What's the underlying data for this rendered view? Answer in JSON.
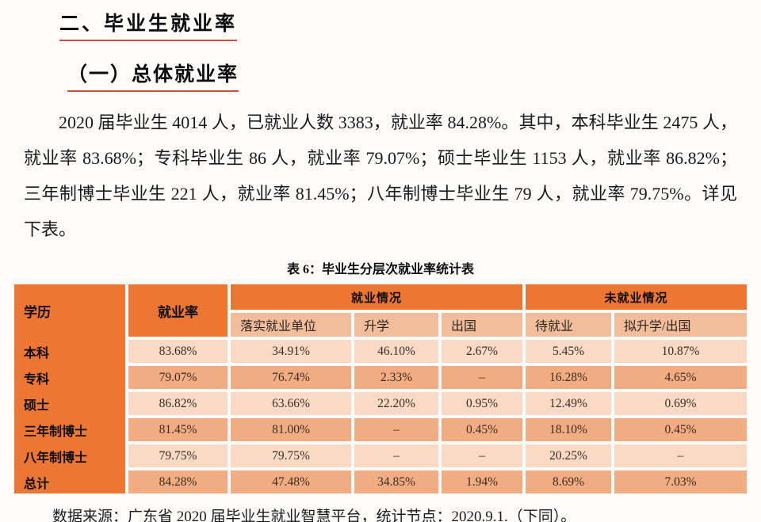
{
  "doc": {
    "heading1": "二、毕业生就业率",
    "heading2": "（一）总体就业率",
    "paragraph": "2020 届毕业生 4014 人，已就业人数 3383，就业率 84.28%。其中，本科毕业生 2475 人，就业率 83.68%；专科毕业生 86 人，就业率 79.07%；硕士毕业生 1153 人，就业率 86.82%；三年制博士毕业生 221 人，就业率 81.45%；八年制博士毕业生 79 人，就业率 79.75%。详见下表。",
    "table_caption": "表 6：毕业生分层次就业率统计表",
    "data_source": "数据来源：广东省 2020 届毕业生就业智慧平台，统计节点：2020.9.1.（下同）。"
  },
  "table": {
    "header": {
      "education": "学历",
      "rate": "就业率",
      "employed_group": "就业情况",
      "unemployed_group": "未就业情况",
      "sub": [
        "落实就业单位",
        "升学",
        "出国",
        "待就业",
        "拟升学/出国"
      ]
    },
    "rows": [
      {
        "label": "本科",
        "values": [
          "83.68%",
          "34.91%",
          "46.10%",
          "2.67%",
          "5.45%",
          "10.87%"
        ]
      },
      {
        "label": "专科",
        "values": [
          "79.07%",
          "76.74%",
          "2.33%",
          "–",
          "16.28%",
          "4.65%"
        ]
      },
      {
        "label": "硕士",
        "values": [
          "86.82%",
          "63.66%",
          "22.20%",
          "0.95%",
          "12.49%",
          "0.69%"
        ]
      },
      {
        "label": "三年制博士",
        "values": [
          "81.45%",
          "81.00%",
          "–",
          "0.45%",
          "18.10%",
          "0.45%"
        ]
      },
      {
        "label": "八年制博士",
        "values": [
          "79.75%",
          "79.75%",
          "–",
          "–",
          "20.25%",
          "–"
        ]
      },
      {
        "label": "总计",
        "values": [
          "84.28%",
          "47.48%",
          "34.85%",
          "1.94%",
          "8.69%",
          "7.03%"
        ]
      }
    ]
  },
  "colors": {
    "header_orange": "#ED7632",
    "subheader_peach": "#F2BD9B",
    "row_light": "#FADAC4",
    "row_dark": "#F2AC82",
    "heading_underline": "#C94F43"
  }
}
